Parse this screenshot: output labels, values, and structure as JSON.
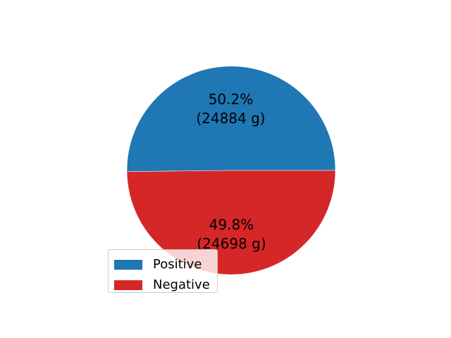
{
  "chart_data": {
    "type": "pie",
    "title": "",
    "slices": [
      {
        "name": "Positive",
        "value": 24884,
        "color": "#1f77b4",
        "pct_label": "50.2%",
        "value_label": "(24884 g)"
      },
      {
        "name": "Negative",
        "value": 24698,
        "color": "#d62728",
        "pct_label": "49.8%",
        "value_label": "(24698 g)"
      }
    ],
    "legend_position": "lower-left"
  }
}
